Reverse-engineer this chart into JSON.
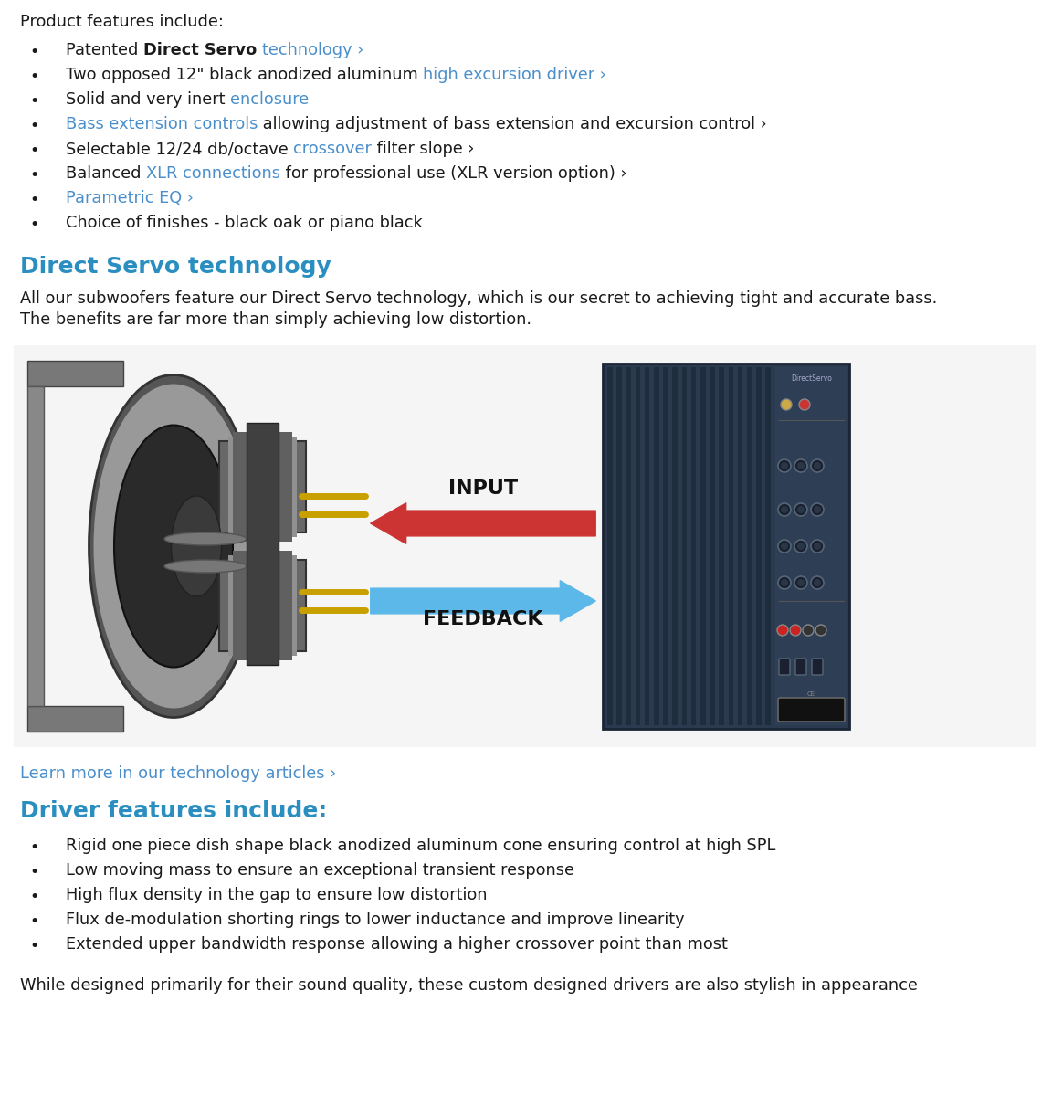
{
  "bg_color": "#ffffff",
  "blue_link_color": "#4a8fcc",
  "heading_blue": "#2a8fc0",
  "text_color": "#1a1a1a",
  "title1": "Direct Servo technology",
  "title2": "Driver features include:",
  "product_features_title": "Product features include:",
  "bullet_items_plain": [
    "Patented |b|Direct Servo|/b| |l|technology ›|/l|",
    "Two opposed 12\" black anodized aluminum |l|high excursion driver ›|/l|",
    "Solid and very inert |l|enclosure|/l|",
    "|l|Bass extension controls|/l| allowing adjustment of bass extension and excursion control ›",
    "Selectable 12/24 db/octave |l|crossover|/l| filter slope ›",
    "Balanced |l|XLR connections|/l| for professional use (XLR version option) ›",
    "|l|Parametric EQ ›|/l|",
    "Choice of finishes - black oak or piano black"
  ],
  "section_text_line1": "All our subwoofers feature our Direct Servo technology, which is our secret to achieving tight and accurate bass.",
  "section_text_line2": "The benefits are far more than simply achieving low distortion.",
  "driver_bullets": [
    "Rigid one piece dish shape black anodized aluminum cone ensuring control at high SPL",
    "Low moving mass to ensure an exceptional transient response",
    "High flux density in the gap to ensure low distortion",
    "Flux de-modulation shorting rings to lower inductance and improve linearity",
    "Extended upper bandwidth response allowing a higher crossover point than most"
  ],
  "learn_more_link": "Learn more in our technology articles ›",
  "bottom_text": "While designed primarily for their sound quality, these custom designed drivers are also stylish in appearance",
  "input_label": "INPUT",
  "feedback_label": "FEEDBACK",
  "input_arrow_color": "#cc3333",
  "feedback_arrow_color": "#5bb8e8",
  "diagram_bg": "#f5f5f5"
}
